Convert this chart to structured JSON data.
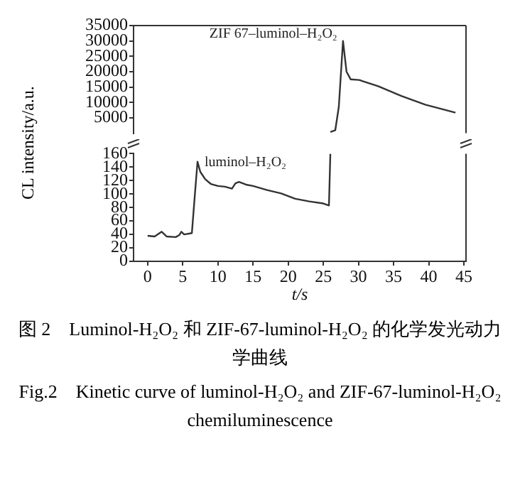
{
  "chart_data": [
    {
      "type": "line",
      "ylabel": "CL intensity/a.u.",
      "xlim": [
        -2,
        45.3
      ],
      "ylim": [
        0,
        35000
      ],
      "yticks": [
        5000,
        10000,
        15000,
        20000,
        25000,
        30000,
        35000
      ],
      "tick_labels": "y",
      "grid": false,
      "marker": "none",
      "line_style": "solid",
      "series": [
        {
          "name": "ZIF 67–luminol–H₂O₂",
          "color": "#333333",
          "x": [
            26,
            26.7,
            27.2,
            27.8,
            28.3,
            28.9,
            30.1,
            32.8,
            36.1,
            39.5,
            43.8
          ],
          "values": [
            400,
            1000,
            8500,
            30000,
            20000,
            17500,
            17300,
            15300,
            12100,
            9300,
            6700
          ]
        }
      ]
    },
    {
      "type": "line",
      "xlabel": "t/s",
      "xlim": [
        -2,
        45.3
      ],
      "xticks": [
        0,
        5,
        10,
        15,
        20,
        25,
        30,
        35,
        40,
        45
      ],
      "ylim": [
        0,
        160
      ],
      "yticks": [
        0,
        20,
        40,
        60,
        80,
        100,
        120,
        140,
        160
      ],
      "grid": false,
      "marker": "none",
      "line_style": "solid",
      "series": [
        {
          "name": "luminol–H₂O₂",
          "color": "#333333",
          "x": [
            0,
            1,
            2,
            2.7,
            4,
            4.5,
            4.8,
            5.2,
            6.3,
            6.7,
            7.1,
            7.5,
            8.2,
            9,
            10,
            11,
            12,
            12.5,
            13,
            14,
            15,
            17,
            19,
            21,
            23,
            25,
            25.8,
            26
          ],
          "values": [
            38,
            37,
            44,
            37,
            36,
            39,
            44,
            40,
            42,
            96,
            148,
            133,
            122,
            115,
            112,
            111,
            108,
            116,
            118,
            114,
            112,
            106,
            101,
            93,
            89,
            86,
            83,
            160
          ]
        }
      ],
      "annotations": [
        "图 2　Luminol-H₂O₂ 和 ZIF-67-luminol-H₂O₂ 的化学发光动力学曲线",
        "Fig.2　Kinetic curve of luminol-H₂O₂ and ZIF-67-luminol-H₂O₂ chemiluminescence"
      ]
    }
  ]
}
